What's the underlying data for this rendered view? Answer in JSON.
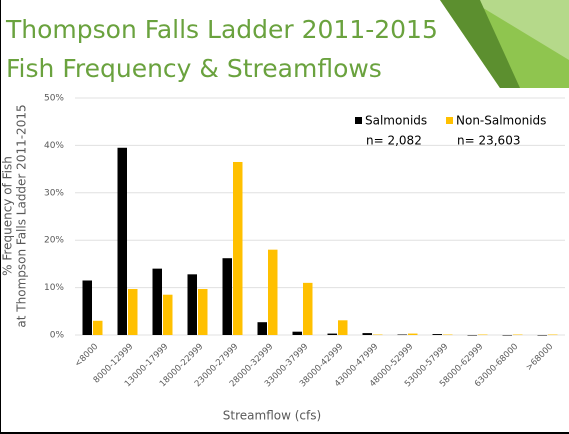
{
  "chart_data": {
    "type": "bar",
    "title_lines": [
      "Thompson Falls Ladder 2011-2015",
      "Fish Frequency & Streamflows"
    ],
    "y_label_lines": [
      "% Frequency of Fish",
      "at Thompson Falls Ladder 2011-2015"
    ],
    "x_label": "Streamflow (cfs)",
    "categories": [
      "<8000",
      "8000-12999",
      "13000-17999",
      "18000-22999",
      "23000-27999",
      "28000-32999",
      "33000-37999",
      "38000-42999",
      "43000-47999",
      "48000-52999",
      "53000-57999",
      "58000-62999",
      "63000-68000",
      ">68000"
    ],
    "series": [
      {
        "name": "Salmonids",
        "color": "#000000",
        "values": [
          11.5,
          39.5,
          14,
          12.8,
          16.2,
          2.7,
          0.7,
          0.3,
          0.4,
          0.1,
          0.2,
          0,
          0,
          0
        ]
      },
      {
        "name": "Non-Salmonids",
        "color": "#ffc000",
        "values": [
          3,
          9.7,
          8.5,
          9.7,
          36.5,
          18,
          11,
          3.1,
          0.1,
          0.3,
          0.1,
          0.1,
          0.1,
          0.1
        ]
      }
    ],
    "annotations": [
      "n= 2,082",
      "n= 23,603"
    ],
    "ylim": [
      0,
      50
    ],
    "yticks": [
      {
        "value": 0,
        "label": "0%"
      },
      {
        "value": 10,
        "label": "10%"
      },
      {
        "value": 20,
        "label": "20%"
      },
      {
        "value": 30,
        "label": "30%"
      },
      {
        "value": 40,
        "label": "40%"
      },
      {
        "value": 50,
        "label": "50%"
      }
    ],
    "grid": true
  }
}
